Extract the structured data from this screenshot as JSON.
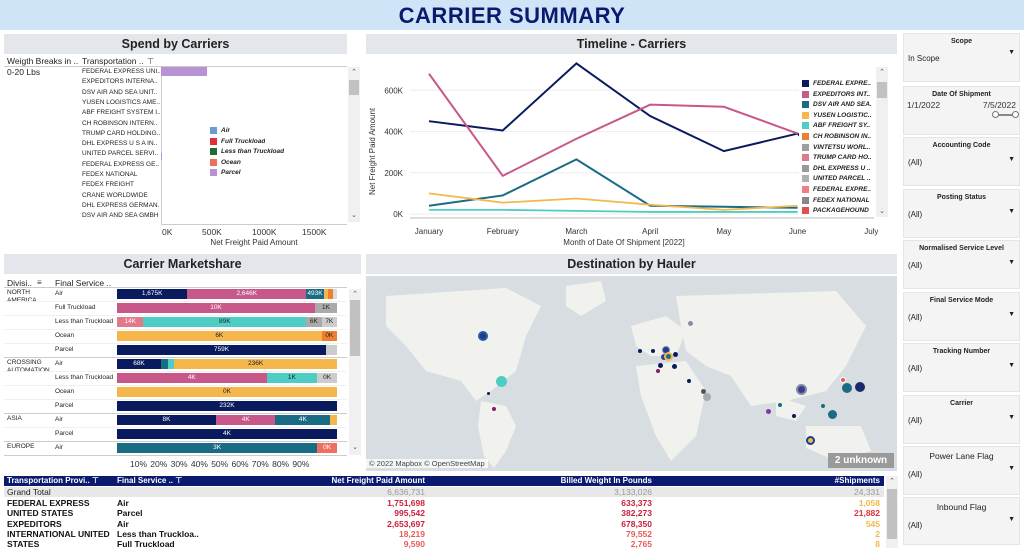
{
  "page": {
    "title": "CARRIER SUMMARY"
  },
  "spend": {
    "title": "Spend by Carriers",
    "col1": "Weigth Breaks in ..",
    "col2": "Transportation ..",
    "weight_break": "0-20 Lbs",
    "carriers": [
      "FEDERAL EXPRESS UNI..",
      "EXPEDITORS INTERNA..",
      "DSV AIR AND SEA UNIT..",
      "YUSEN LOGISTICS AME..",
      "ABF FREIGHT SYSTEM I..",
      "CH ROBINSON INTERN..",
      "TRUMP CARD HOLDING..",
      "DHL EXPRESS U S A IN..",
      "UNITED PARCEL SERVI..",
      "FEDERAL EXPRESS GE..",
      "FEDEX NATIONAL",
      "FEDEX FREIGHT",
      "CRANE WORLDWIDE",
      "DHL EXPRESS GERMAN..",
      "DSV AIR AND SEA GMBH"
    ],
    "ticks": [
      "0K",
      "500K",
      "1000K",
      "1500K"
    ],
    "axis_label": "Net Freight Paid Amount",
    "legend": [
      {
        "label": "Air",
        "color": "#6b9bd2"
      },
      {
        "label": "Full Truckload",
        "color": "#e0303a"
      },
      {
        "label": "Less than Truckload",
        "color": "#1f6b3a"
      },
      {
        "label": "Ocean",
        "color": "#ee6f62"
      },
      {
        "label": "Parcel",
        "color": "#b892d4"
      }
    ]
  },
  "timeline": {
    "title": "Timeline - Carriers",
    "ylabel": "Net Freight Paid Amount",
    "xlabel": "Month of Date Of Shipment [2022]",
    "legend": [
      "FEDERAL EXPRE..",
      "EXPEDITORS INT..",
      "DSV AIR AND SEA..",
      "YUSEN LOGISTIC..",
      "ABF FREIGHT SY..",
      "CH ROBINSON IN..",
      "VINTETSU WORL..",
      "TRUMP CARD HO..",
      "DHL EXPRESS U ..",
      "UNITED PARCEL ..",
      "FEDERAL EXPRE..",
      "FEDEX NATIONAL",
      "PACKAGEHOUND"
    ]
  },
  "marketshare": {
    "title": "Carrier Marketshare",
    "col1": "Divisi..",
    "col2": "Final Service ..",
    "groups": [
      {
        "div": "NORTH AMERICA",
        "rows": [
          "Air",
          "Full Truckload",
          "Less than Truckload",
          "Ocean",
          "Parcel"
        ]
      },
      {
        "div": "CROSSING AUTOMATION",
        "rows": [
          "Air",
          "Less than Truckload",
          "Ocean",
          "Parcel"
        ]
      },
      {
        "div": "ASIA",
        "rows": [
          "Air",
          "Parcel"
        ]
      },
      {
        "div": "EUROPE",
        "rows": [
          "Air"
        ]
      }
    ],
    "seg_labels": {
      "na_air": [
        "1,675K",
        "2,646K",
        "493K"
      ],
      "na_ftl": "10K",
      "na_ftl2": "1K",
      "na_ltl": [
        "14K",
        "89K",
        "6K",
        "7K"
      ],
      "na_ocean": "6K",
      "na_ocean2": "0K",
      "na_parcel": "759K",
      "ca_air": [
        "68K",
        "236K"
      ],
      "ca_ltl": [
        "4K",
        "1K",
        "0K"
      ],
      "ca_ocean": "0K",
      "ca_parcel": "232K",
      "as_air": [
        "8K",
        "4K",
        "4K"
      ],
      "as_parcel": "4K",
      "eu_air": [
        "3K",
        "0K"
      ]
    },
    "ticks": [
      "10%",
      "20%",
      "30%",
      "40%",
      "50%",
      "60%",
      "70%",
      "80%",
      "90%"
    ]
  },
  "map": {
    "title": "Destination by Hauler",
    "attribution": "© 2022 Mapbox © OpenStreetMap",
    "unknown": "2 unknown"
  },
  "table": {
    "headers": [
      "Transportation Provi..",
      "Final Service ..",
      "Net Freight Paid Amount",
      "Billed Weight In Pounds",
      "#Shipments"
    ],
    "grand": {
      "label": "Grand Total",
      "amount": "6,636,731",
      "weight": "3,133,026",
      "ship": "24,331"
    },
    "rows": [
      {
        "p": "FEDERAL EXPRESS",
        "s": "Air",
        "a": "1,751,698",
        "w": "633,373",
        "n": "1,058"
      },
      {
        "p": "UNITED STATES",
        "s": "Parcel",
        "a": "995,542",
        "w": "382,273",
        "n": "21,882"
      },
      {
        "p": "EXPEDITORS",
        "s": "Air",
        "a": "2,653,697",
        "w": "678,350",
        "n": "545"
      },
      {
        "p": "INTERNATIONAL UNITED",
        "s": "Less than Truckloa..",
        "a": "18,219",
        "w": "79,552",
        "n": "2"
      },
      {
        "p": "STATES",
        "s": "Full Truckload",
        "a": "9,590",
        "w": "2,765",
        "n": "8"
      }
    ]
  },
  "filters": [
    {
      "label": "Scope",
      "value": "In Scope"
    },
    {
      "label": "Date Of Shipment",
      "from": "1/1/2022",
      "to": "7/5/2022"
    },
    {
      "label": "Accounting Code",
      "value": "(All)"
    },
    {
      "label": "Posting Status",
      "value": "(All)"
    },
    {
      "label": "Normalised Service Level",
      "value": "(All)"
    },
    {
      "label": "Final Service Mode",
      "value": "(All)"
    },
    {
      "label": "Tracking Number",
      "value": "(All)"
    },
    {
      "label": "Carrier",
      "value": "(All)"
    },
    {
      "label": "Power Lane Flag",
      "value": "(All)"
    },
    {
      "label": "Inbound Flag",
      "value": "(All)"
    }
  ],
  "chart_data": {
    "type": "line",
    "title": "Timeline - Carriers",
    "xlabel": "Month of Date Of Shipment [2022]",
    "ylabel": "Net Freight Paid Amount",
    "categories": [
      "January",
      "February",
      "March",
      "April",
      "May",
      "June",
      "July"
    ],
    "ylim": [
      0,
      800000
    ],
    "series": [
      {
        "name": "FEDERAL EXPRE..",
        "color": "#0a1a5e",
        "values": [
          450000,
          405000,
          730000,
          475000,
          305000,
          390000,
          0
        ]
      },
      {
        "name": "EXPEDITORS INT..",
        "color": "#c8578a",
        "values": [
          680000,
          185000,
          365000,
          530000,
          520000,
          390000,
          null
        ]
      },
      {
        "name": "DSV AIR AND SEA..",
        "color": "#1a6b84",
        "values": [
          40000,
          90000,
          265000,
          40000,
          35000,
          30000,
          null
        ]
      },
      {
        "name": "YUSEN LOGISTIC..",
        "color": "#f5b74b",
        "values": [
          100000,
          55000,
          75000,
          45000,
          20000,
          40000,
          null
        ]
      },
      {
        "name": "ABF FREIGHT SY..",
        "color": "#4ecdc4",
        "values": [
          20000,
          20000,
          15000,
          10000,
          10000,
          10000,
          null
        ]
      }
    ]
  }
}
